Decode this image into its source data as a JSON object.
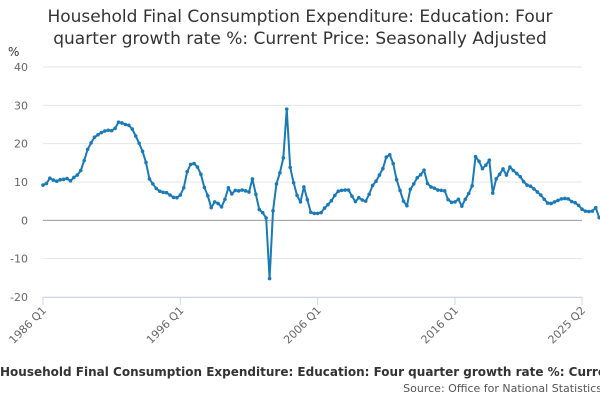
{
  "chart_data": {
    "type": "line",
    "title_line1": "Household Final Consumption Expenditure: Education: Four",
    "title_line2": "quarter growth rate %: Current Price: Seasonally Adjusted",
    "ylabel": "%",
    "ylim": [
      -20,
      40
    ],
    "yticks": [
      "-20",
      "-10",
      "0",
      "10",
      "20",
      "30",
      "40"
    ],
    "xlim": [
      1986.0,
      2025.25
    ],
    "xticks": [
      {
        "x": 1986.0,
        "label": "1986 Q1"
      },
      {
        "x": 1996.0,
        "label": "1996 Q1"
      },
      {
        "x": 2006.0,
        "label": "2006 Q1"
      },
      {
        "x": 2016.0,
        "label": "2016 Q1"
      },
      {
        "x": 2025.25,
        "label": "2025 Q2"
      }
    ],
    "grid": true,
    "color": "#1a7ab8",
    "series": [
      {
        "name": "Household Final Consumption Expenditure: Education: Four quarter growth rate %: Current Price: Seasonally Adjusted",
        "start": "1986 Q1",
        "values": [
          9.2,
          9.6,
          11.0,
          10.5,
          10.2,
          10.6,
          10.7,
          10.9,
          10.3,
          11.2,
          11.8,
          13.0,
          15.6,
          18.5,
          20.2,
          21.7,
          22.3,
          22.9,
          23.3,
          23.5,
          23.4,
          24.0,
          25.6,
          25.4,
          25.0,
          24.8,
          23.8,
          22.0,
          20.1,
          18.0,
          15.1,
          10.8,
          9.5,
          8.3,
          7.6,
          7.3,
          7.2,
          6.6,
          6.0,
          5.9,
          6.6,
          8.5,
          12.7,
          14.6,
          14.8,
          13.9,
          12.0,
          8.6,
          6.4,
          3.3,
          4.8,
          4.4,
          3.5,
          5.5,
          8.5,
          6.9,
          7.8,
          7.7,
          7.9,
          7.7,
          7.4,
          10.8,
          6.8,
          2.8,
          2.0,
          0.6,
          -15.2,
          2.5,
          9.5,
          12.4,
          16.3,
          29.0,
          13.8,
          9.8,
          6.5,
          4.8,
          8.7,
          5.4,
          2.1,
          1.8,
          1.8,
          2.0,
          3.2,
          4.1,
          5.1,
          6.5,
          7.6,
          7.8,
          7.9,
          7.9,
          6.3,
          4.9,
          5.9,
          5.3,
          5.0,
          6.8,
          9.1,
          10.2,
          11.8,
          13.5,
          16.5,
          17.1,
          14.8,
          10.6,
          7.8,
          5.0,
          3.8,
          8.1,
          9.5,
          11.1,
          11.9,
          13.1,
          9.6,
          8.7,
          8.4,
          7.9,
          7.8,
          7.7,
          5.4,
          4.7,
          4.8,
          5.5,
          3.7,
          5.5,
          7.0,
          9.0,
          16.6,
          15.4,
          13.5,
          14.4,
          15.7,
          7.1,
          10.8,
          12.0,
          13.4,
          11.8,
          13.9,
          13.0,
          12.2,
          11.4,
          10.1,
          9.2,
          8.9,
          8.2,
          7.4,
          6.6,
          5.5,
          4.5,
          4.4,
          4.8,
          5.2,
          5.6,
          5.7,
          5.6,
          4.9,
          4.6,
          3.9,
          2.9,
          2.4,
          2.3,
          2.4,
          3.3,
          0.7,
          0.6,
          1.3,
          3.3,
          3.1,
          4.5,
          7.3,
          7.1,
          6.8,
          7.5,
          11.7,
          12.5,
          13.2,
          14.6,
          13.5,
          11.3,
          9.3,
          8.0,
          7.7,
          7.7,
          7.3,
          7.3,
          6.8,
          6.1,
          8.7,
          8.6,
          8.9
        ]
      }
    ]
  },
  "footer": {
    "caption": "Household Final Consumption Expenditure: Education: Four quarter growth rate %: Current Price: Seasonally Adjusted",
    "source": "Source: Office for National Statistics"
  }
}
